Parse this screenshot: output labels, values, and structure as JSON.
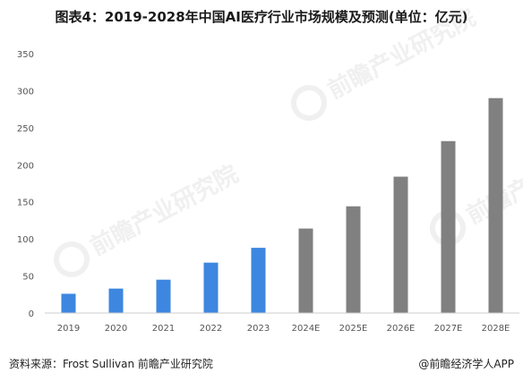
{
  "title": "图表4：2019-2028年中国AI医疗行业市场规模及预测(单位：亿元)",
  "watermark": {
    "brand": "前瞻产业研究院",
    "brand_short": "前瞻产"
  },
  "footer": {
    "source_label": "资料来源：",
    "source_text": "Frost Sullivan 前瞻产业研究院",
    "credit": "@前瞻经济学人APP"
  },
  "colors": {
    "actual": "#3d87e0",
    "forecast": "#808080",
    "axis": "#cccccc"
  },
  "chart_data": {
    "type": "bar",
    "categories": [
      "2019",
      "2020",
      "2021",
      "2022",
      "2023",
      "2024E",
      "2025E",
      "2026E",
      "2027E",
      "2028E"
    ],
    "values": [
      26,
      33,
      45,
      68,
      88,
      114,
      144,
      184,
      232,
      290
    ],
    "series_kind": [
      "actual",
      "actual",
      "actual",
      "actual",
      "actual",
      "forecast",
      "forecast",
      "forecast",
      "forecast",
      "forecast"
    ],
    "yticks": [
      0,
      50,
      100,
      150,
      200,
      250,
      300,
      350
    ],
    "ylim": [
      0,
      350
    ],
    "grid": false,
    "legend": "none"
  }
}
